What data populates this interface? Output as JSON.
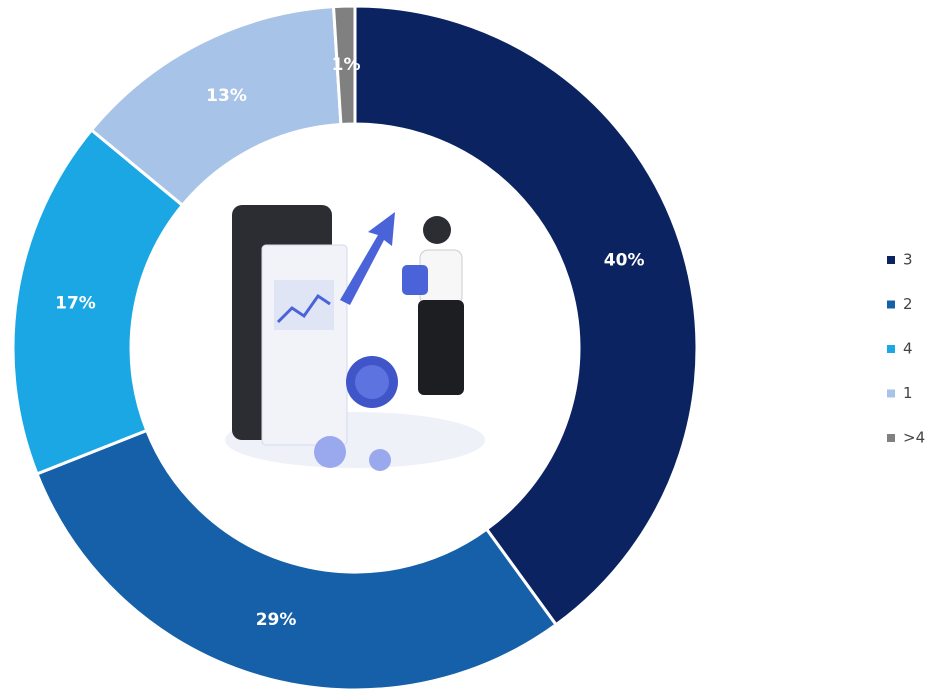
{
  "chart_data": {
    "type": "donut",
    "categories": [
      "3",
      "2",
      "4",
      "1",
      ">4"
    ],
    "values": [
      40,
      29,
      17,
      13,
      1
    ],
    "value_labels": [
      "40%",
      "29%",
      "17%",
      "13%",
      "1%"
    ],
    "colors": [
      "#0b2461",
      "#1560a8",
      "#1aa7e4",
      "#a7c3e7",
      "#808080"
    ],
    "legend": "right"
  }
}
